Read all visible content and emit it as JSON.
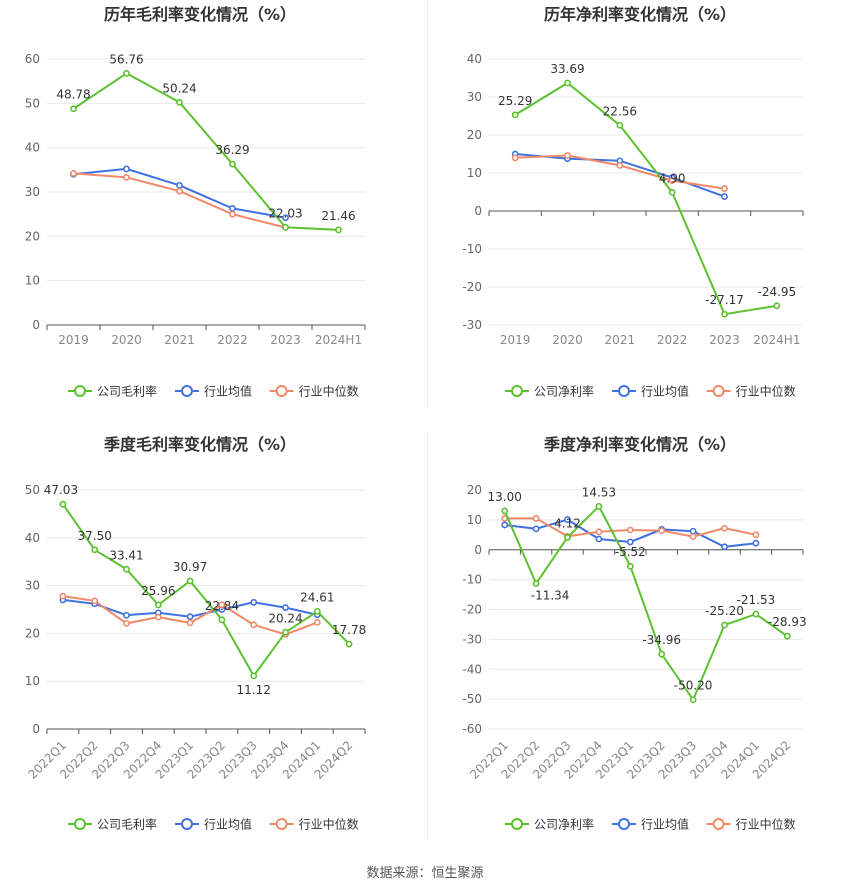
{
  "footer": {
    "source": "数据来源：恒生聚源"
  },
  "colors": {
    "company": "#5cc12f",
    "avg": "#3f72e0",
    "median": "#f0896a",
    "grid": "#e8e8e8",
    "axis": "#999999"
  },
  "legend_labels": [
    "行业均值",
    "行业中位数"
  ],
  "chart_data": [
    {
      "type": "line",
      "title": "历年毛利率变化情况（%）",
      "categories": [
        "2019",
        "2020",
        "2021",
        "2022",
        "2023",
        "2024H1"
      ],
      "ylim": [
        0,
        60
      ],
      "yticks": [
        0,
        10,
        20,
        30,
        40,
        50,
        60
      ],
      "rotate_x": false,
      "grid": true,
      "legend_position": "bottom",
      "series": [
        {
          "name": "公司毛利率",
          "key": "company",
          "labels": true,
          "values": [
            48.78,
            56.76,
            50.24,
            36.29,
            22.03,
            21.46
          ]
        },
        {
          "name": "行业均值",
          "key": "avg",
          "labels": false,
          "values": [
            34.0,
            35.2,
            31.5,
            26.3,
            24.2,
            null
          ]
        },
        {
          "name": "行业中位数",
          "key": "median",
          "labels": false,
          "values": [
            34.2,
            33.3,
            30.2,
            25.0,
            22.0,
            null
          ]
        }
      ]
    },
    {
      "type": "line",
      "title": "历年净利率变化情况（%）",
      "categories": [
        "2019",
        "2020",
        "2021",
        "2022",
        "2023",
        "2024H1"
      ],
      "ylim": [
        -30,
        40
      ],
      "yticks": [
        -30,
        -20,
        -10,
        0,
        10,
        20,
        30,
        40
      ],
      "rotate_x": false,
      "grid": true,
      "legend_position": "bottom",
      "series": [
        {
          "name": "公司净利率",
          "key": "company",
          "labels": true,
          "values": [
            25.29,
            33.69,
            22.56,
            4.9,
            -27.17,
            -24.95
          ]
        },
        {
          "name": "行业均值",
          "key": "avg",
          "labels": false,
          "values": [
            15.0,
            13.8,
            13.2,
            8.8,
            3.8,
            null
          ]
        },
        {
          "name": "行业中位数",
          "key": "median",
          "labels": false,
          "values": [
            14.0,
            14.6,
            12.0,
            8.0,
            5.9,
            null
          ]
        }
      ]
    },
    {
      "type": "line",
      "title": "季度毛利率变化情况（%）",
      "categories": [
        "2022Q1",
        "2022Q2",
        "2022Q3",
        "2022Q4",
        "2023Q1",
        "2023Q2",
        "2023Q3",
        "2023Q4",
        "2024Q1",
        "2024Q2"
      ],
      "ylim": [
        0,
        50
      ],
      "yticks": [
        0,
        10,
        20,
        30,
        40,
        50
      ],
      "rotate_x": true,
      "grid": true,
      "legend_position": "bottom",
      "series": [
        {
          "name": "公司毛利率",
          "key": "company",
          "labels": true,
          "values": [
            47.03,
            37.5,
            33.41,
            25.96,
            30.97,
            22.84,
            11.12,
            20.24,
            24.61,
            17.78
          ]
        },
        {
          "name": "行业均值",
          "key": "avg",
          "labels": false,
          "values": [
            27.0,
            26.2,
            23.8,
            24.3,
            23.5,
            25.0,
            26.5,
            25.4,
            23.9,
            null
          ]
        },
        {
          "name": "行业中位数",
          "key": "median",
          "labels": false,
          "values": [
            27.8,
            26.8,
            22.1,
            23.4,
            22.2,
            26.0,
            21.8,
            19.8,
            22.3,
            null
          ]
        }
      ]
    },
    {
      "type": "line",
      "title": "季度净利率变化情况（%）",
      "categories": [
        "2022Q1",
        "2022Q2",
        "2022Q3",
        "2022Q4",
        "2023Q1",
        "2023Q2",
        "2023Q3",
        "2023Q4",
        "2024Q1",
        "2024Q2"
      ],
      "ylim": [
        -60,
        20
      ],
      "yticks": [
        -60,
        -50,
        -40,
        -30,
        -20,
        -10,
        0,
        10,
        20
      ],
      "rotate_x": true,
      "grid": true,
      "legend_position": "bottom",
      "series": [
        {
          "name": "公司净利率",
          "key": "company",
          "labels": true,
          "values": [
            13.0,
            -11.34,
            4.12,
            14.53,
            -5.52,
            -34.96,
            -50.2,
            -25.2,
            -21.53,
            -28.93
          ]
        },
        {
          "name": "行业均值",
          "key": "avg",
          "labels": false,
          "values": [
            8.3,
            7.0,
            10.1,
            3.6,
            2.6,
            6.8,
            6.2,
            1.0,
            2.2,
            null
          ]
        },
        {
          "name": "行业中位数",
          "key": "median",
          "labels": false,
          "values": [
            10.5,
            10.5,
            4.5,
            6.0,
            6.6,
            6.4,
            4.4,
            7.2,
            5.0,
            null
          ]
        }
      ]
    }
  ]
}
